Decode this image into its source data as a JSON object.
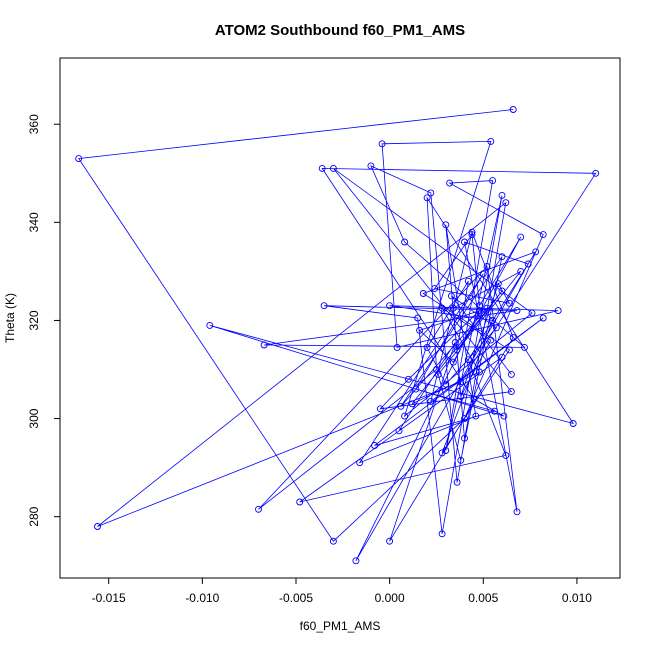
{
  "chart_data": {
    "type": "line",
    "title": "ATOM2 Southbound f60_PM1_AMS",
    "xlabel": "f60_PM1_AMS",
    "ylabel": "Theta (K)",
    "xlim": [
      -0.0176,
      0.0123
    ],
    "ylim": [
      267.5,
      373.5
    ],
    "xticks": [
      -0.015,
      -0.01,
      -0.005,
      0.0,
      0.005,
      0.01
    ],
    "xtick_labels": [
      "-0.015",
      "-0.010",
      "-0.005",
      "0.000",
      "0.005",
      "0.010"
    ],
    "yticks": [
      280,
      300,
      320,
      340,
      360
    ],
    "ytick_labels": [
      "280",
      "300",
      "320",
      "340",
      "360"
    ],
    "grid": false,
    "series_color": "#0000ff",
    "points": [
      {
        "x": 0.0066,
        "y": 363.0
      },
      {
        "x": -0.0166,
        "y": 353.0
      },
      {
        "x": -0.003,
        "y": 275.0
      },
      {
        "x": 0.004,
        "y": 300.0
      },
      {
        "x": 0.0082,
        "y": 337.5
      },
      {
        "x": 0.0032,
        "y": 348.0
      },
      {
        "x": 0.0055,
        "y": 348.5
      },
      {
        "x": 0.003,
        "y": 293.5
      },
      {
        "x": 0.006,
        "y": 345.5
      },
      {
        "x": 0.0028,
        "y": 276.5
      },
      {
        "x": 0.0015,
        "y": 320.5
      },
      {
        "x": -0.0035,
        "y": 323.0
      },
      {
        "x": 0.0068,
        "y": 322.0
      },
      {
        "x": -0.0067,
        "y": 315.0
      },
      {
        "x": 0.0072,
        "y": 314.5
      },
      {
        "x": 0.0008,
        "y": 336.0
      },
      {
        "x": -0.001,
        "y": 351.5
      },
      {
        "x": 0.0022,
        "y": 346.0
      },
      {
        "x": 0.0036,
        "y": 287.0
      },
      {
        "x": 0.0062,
        "y": 344.0
      },
      {
        "x": -0.0156,
        "y": 278.0
      },
      {
        "x": 0.0038,
        "y": 307.5
      },
      {
        "x": 0.011,
        "y": 350.0
      },
      {
        "x": -0.0036,
        "y": 351.0
      },
      {
        "x": 0.0045,
        "y": 304.0
      },
      {
        "x": 0.0061,
        "y": 300.5
      },
      {
        "x": -0.0096,
        "y": 319.0
      },
      {
        "x": 0.0098,
        "y": 299.0
      },
      {
        "x": 0.002,
        "y": 345.0
      },
      {
        "x": 0.0025,
        "y": 310.0
      },
      {
        "x": -0.007,
        "y": 281.5
      },
      {
        "x": 0.0052,
        "y": 331.0
      },
      {
        "x": 0.0068,
        "y": 281.0
      },
      {
        "x": 0.004,
        "y": 336.0
      },
      {
        "x": 0.0074,
        "y": 331.5
      },
      {
        "x": -0.0018,
        "y": 271.0
      },
      {
        "x": 0.0048,
        "y": 322.0
      },
      {
        "x": 0.001,
        "y": 308.0
      },
      {
        "x": -0.0005,
        "y": 302.0
      },
      {
        "x": 0.0065,
        "y": 305.5
      },
      {
        "x": -0.003,
        "y": 351.0
      },
      {
        "x": 0.0076,
        "y": 321.5
      },
      {
        "x": 0.0008,
        "y": 300.5
      },
      {
        "x": 0.0054,
        "y": 356.5
      },
      {
        "x": -0.0004,
        "y": 356.0
      },
      {
        "x": 0.0004,
        "y": 314.5
      },
      {
        "x": 0.009,
        "y": 322.0
      },
      {
        "x": 0.0,
        "y": 323.0
      },
      {
        "x": 0.0055,
        "y": 320.0
      },
      {
        "x": 0.0028,
        "y": 293.0
      },
      {
        "x": 0.0064,
        "y": 314.0
      },
      {
        "x": 0.0018,
        "y": 325.5
      },
      {
        "x": 0.0078,
        "y": 334.0
      },
      {
        "x": 0.0042,
        "y": 312.0
      },
      {
        "x": 0.0062,
        "y": 292.5
      },
      {
        "x": -0.0048,
        "y": 283.0
      },
      {
        "x": 0.006,
        "y": 312.5
      },
      {
        "x": 0.0005,
        "y": 297.5
      },
      {
        "x": 0.0035,
        "y": 315.5
      },
      {
        "x": 0.0,
        "y": 275.0
      },
      {
        "x": 0.0066,
        "y": 316.5
      },
      {
        "x": 0.0044,
        "y": 338.0
      },
      {
        "x": 0.0022,
        "y": 303.5
      },
      {
        "x": 0.0082,
        "y": 320.5
      },
      {
        "x": -0.0008,
        "y": 294.5
      },
      {
        "x": 0.0056,
        "y": 301.5
      },
      {
        "x": 0.0014,
        "y": 306.0
      },
      {
        "x": 0.005,
        "y": 329.5
      },
      {
        "x": -0.0016,
        "y": 291.0
      },
      {
        "x": 0.0046,
        "y": 300.5
      },
      {
        "x": 0.003,
        "y": 339.5
      },
      {
        "x": 0.004,
        "y": 296.0
      },
      {
        "x": 0.0034,
        "y": 322.5
      },
      {
        "x": 0.007,
        "y": 330.0
      },
      {
        "x": 0.0026,
        "y": 309.0
      },
      {
        "x": 0.0038,
        "y": 291.5
      },
      {
        "x": 0.006,
        "y": 333.0
      },
      {
        "x": 0.0006,
        "y": 302.5
      },
      {
        "x": 0.0052,
        "y": 322.5
      },
      {
        "x": 0.0016,
        "y": 318.0
      },
      {
        "x": 0.0034,
        "y": 311.5
      },
      {
        "x": 0.007,
        "y": 337.0
      },
      {
        "x": 0.0048,
        "y": 323.0
      },
      {
        "x": 0.0044,
        "y": 337.5
      },
      {
        "x": 0.0024,
        "y": 326.5
      },
      {
        "x": 0.0064,
        "y": 323.5
      },
      {
        "x": 0.0058,
        "y": 327.5
      },
      {
        "x": 0.0038,
        "y": 304.5
      },
      {
        "x": 0.0054,
        "y": 316.0
      },
      {
        "x": 0.0028,
        "y": 322.5
      },
      {
        "x": 0.0048,
        "y": 309.5
      },
      {
        "x": 0.0012,
        "y": 303.0
      },
      {
        "x": 0.006,
        "y": 326.0
      },
      {
        "x": 0.0036,
        "y": 314.0
      },
      {
        "x": 0.0042,
        "y": 328.0
      },
      {
        "x": 0.002,
        "y": 314.5
      },
      {
        "x": 0.003,
        "y": 307.0
      },
      {
        "x": 0.0057,
        "y": 318.5
      },
      {
        "x": 0.0033,
        "y": 325.0
      },
      {
        "x": 0.0065,
        "y": 309.0
      }
    ]
  }
}
